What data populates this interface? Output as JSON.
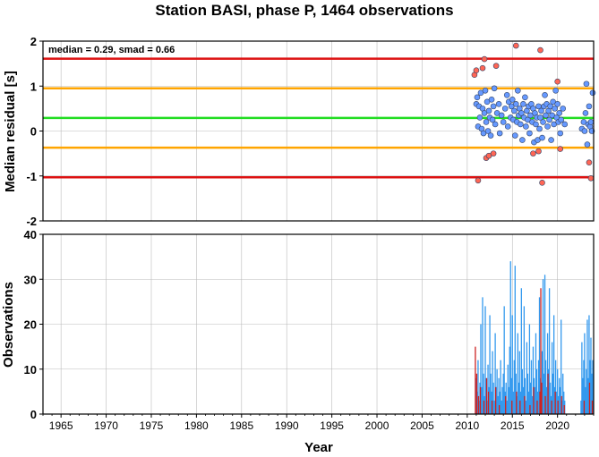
{
  "chart_data": [
    {
      "type": "scatter",
      "title": "Station BASI, phase P, 1464 observations",
      "ylabel": "Median residual [s]",
      "annotation": "median = 0.29, smad = 0.66",
      "xlim": [
        1963,
        2024
      ],
      "ylim": [
        -2,
        2
      ],
      "yticks": [
        -2,
        -1,
        0,
        1,
        2
      ],
      "grid": true,
      "reference_lines": [
        {
          "name": "median",
          "value": 0.29,
          "color": "#22dd22"
        },
        {
          "name": "median+1smad",
          "value": 0.95,
          "color": "#ffa500"
        },
        {
          "name": "median-1smad",
          "value": -0.37,
          "color": "#ffa500"
        },
        {
          "name": "median+2smad",
          "value": 1.61,
          "color": "#dd1111"
        },
        {
          "name": "median-2smad",
          "value": -1.03,
          "color": "#dd1111"
        }
      ],
      "series": [
        {
          "color": "#6699ff",
          "points": [
            [
              2011.0,
              0.6
            ],
            [
              2011.1,
              0.75
            ],
            [
              2011.2,
              0.1
            ],
            [
              2011.3,
              0.55
            ],
            [
              2011.4,
              0.3
            ],
            [
              2011.5,
              0.85
            ],
            [
              2011.6,
              0.05
            ],
            [
              2011.7,
              0.5
            ],
            [
              2011.8,
              -0.05
            ],
            [
              2011.9,
              0.4
            ],
            [
              2012.0,
              0.9
            ],
            [
              2012.1,
              0.2
            ],
            [
              2012.2,
              0.65
            ],
            [
              2012.3,
              0.0
            ],
            [
              2012.4,
              0.45
            ],
            [
              2012.5,
              0.3
            ],
            [
              2012.6,
              -0.1
            ],
            [
              2012.7,
              0.7
            ],
            [
              2012.8,
              0.25
            ],
            [
              2012.9,
              0.55
            ],
            [
              2013.0,
              0.95
            ],
            [
              2013.1,
              0.15
            ],
            [
              2013.3,
              0.4
            ],
            [
              2013.5,
              0.6
            ],
            [
              2013.6,
              -0.05
            ],
            [
              2013.8,
              0.35
            ],
            [
              2014.0,
              0.2
            ],
            [
              2014.2,
              0.5
            ],
            [
              2014.4,
              0.8
            ],
            [
              2014.5,
              0.1
            ],
            [
              2014.6,
              0.65
            ],
            [
              2014.8,
              0.3
            ],
            [
              2014.9,
              0.55
            ],
            [
              2015.0,
              0.7
            ],
            [
              2015.1,
              0.25
            ],
            [
              2015.2,
              0.45
            ],
            [
              2015.3,
              -0.1
            ],
            [
              2015.4,
              0.6
            ],
            [
              2015.5,
              0.2
            ],
            [
              2015.6,
              0.9
            ],
            [
              2015.7,
              0.35
            ],
            [
              2015.8,
              0.5
            ],
            [
              2015.9,
              0.15
            ],
            [
              2016.0,
              0.4
            ],
            [
              2016.1,
              -0.2
            ],
            [
              2016.2,
              0.6
            ],
            [
              2016.3,
              0.3
            ],
            [
              2016.4,
              0.75
            ],
            [
              2016.5,
              0.1
            ],
            [
              2016.6,
              0.45
            ],
            [
              2016.7,
              0.25
            ],
            [
              2016.8,
              0.55
            ],
            [
              2016.9,
              -0.05
            ],
            [
              2017.0,
              0.35
            ],
            [
              2017.1,
              0.6
            ],
            [
              2017.2,
              0.2
            ],
            [
              2017.3,
              0.5
            ],
            [
              2017.4,
              -0.25
            ],
            [
              2017.5,
              0.4
            ],
            [
              2017.6,
              0.15
            ],
            [
              2017.7,
              0.3
            ],
            [
              2017.8,
              -0.2
            ],
            [
              2017.9,
              0.55
            ],
            [
              2018.0,
              0.05
            ],
            [
              2018.1,
              0.3
            ],
            [
              2018.2,
              0.45
            ],
            [
              2018.3,
              -0.15
            ],
            [
              2018.4,
              0.2
            ],
            [
              2018.5,
              0.55
            ],
            [
              2018.6,
              0.8
            ],
            [
              2018.7,
              0.35
            ],
            [
              2018.8,
              0.6
            ],
            [
              2018.9,
              0.1
            ],
            [
              2019.0,
              0.45
            ],
            [
              2019.1,
              0.25
            ],
            [
              2019.2,
              0.55
            ],
            [
              2019.3,
              -0.2
            ],
            [
              2019.4,
              0.35
            ],
            [
              2019.5,
              0.65
            ],
            [
              2019.6,
              0.15
            ],
            [
              2019.7,
              0.5
            ],
            [
              2019.8,
              0.9
            ],
            [
              2019.9,
              0.3
            ],
            [
              2020.0,
              0.6
            ],
            [
              2020.1,
              0.2
            ],
            [
              2020.2,
              0.4
            ],
            [
              2020.3,
              -0.05
            ],
            [
              2020.4,
              0.25
            ],
            [
              2020.6,
              0.5
            ],
            [
              2020.8,
              0.15
            ],
            [
              2022.7,
              0.05
            ],
            [
              2022.9,
              0.2
            ],
            [
              2023.0,
              0.0
            ],
            [
              2023.1,
              0.4
            ],
            [
              2023.2,
              1.05
            ],
            [
              2023.3,
              -0.3
            ],
            [
              2023.4,
              0.15
            ],
            [
              2023.5,
              0.55
            ],
            [
              2023.6,
              0.1
            ],
            [
              2023.7,
              0.2
            ],
            [
              2023.8,
              0.0
            ],
            [
              2023.9,
              0.85
            ]
          ]
        },
        {
          "color": "#ff6655",
          "points": [
            [
              2010.8,
              1.25
            ],
            [
              2011.0,
              1.35
            ],
            [
              2011.2,
              -1.1
            ],
            [
              2011.7,
              1.4
            ],
            [
              2011.9,
              1.6
            ],
            [
              2012.1,
              -0.6
            ],
            [
              2012.4,
              -0.55
            ],
            [
              2012.9,
              -0.5
            ],
            [
              2013.2,
              1.45
            ],
            [
              2015.4,
              1.9
            ],
            [
              2017.3,
              -0.5
            ],
            [
              2017.9,
              -0.45
            ],
            [
              2018.1,
              1.8
            ],
            [
              2018.3,
              -1.15
            ],
            [
              2020.0,
              1.1
            ],
            [
              2020.3,
              -0.4
            ],
            [
              2023.5,
              -0.7
            ],
            [
              2023.7,
              -1.05
            ]
          ]
        }
      ]
    },
    {
      "type": "bar",
      "xlabel": "Year",
      "ylabel": "Observations",
      "xlim": [
        1963,
        2024
      ],
      "ylim": [
        0,
        40
      ],
      "yticks": [
        0,
        10,
        20,
        30,
        40
      ],
      "xticks": [
        1965,
        1970,
        1975,
        1980,
        1985,
        1990,
        1995,
        2000,
        2005,
        2010,
        2015,
        2020
      ],
      "grid": true,
      "series": [
        {
          "color": "#3399ee",
          "bars": [
            [
              2011.0,
              8
            ],
            [
              2011.1,
              5
            ],
            [
              2011.2,
              12
            ],
            [
              2011.3,
              3
            ],
            [
              2011.4,
              7
            ],
            [
              2011.5,
              20
            ],
            [
              2011.6,
              6
            ],
            [
              2011.7,
              26
            ],
            [
              2011.8,
              9
            ],
            [
              2011.9,
              4
            ],
            [
              2012.0,
              24
            ],
            [
              2012.1,
              8
            ],
            [
              2012.2,
              3
            ],
            [
              2012.3,
              11
            ],
            [
              2012.4,
              6
            ],
            [
              2012.5,
              22
            ],
            [
              2012.6,
              9
            ],
            [
              2012.7,
              5
            ],
            [
              2012.8,
              14
            ],
            [
              2012.9,
              7
            ],
            [
              2013.0,
              3
            ],
            [
              2013.1,
              18
            ],
            [
              2013.2,
              6
            ],
            [
              2013.3,
              10
            ],
            [
              2013.4,
              4
            ],
            [
              2013.5,
              8
            ],
            [
              2013.6,
              5
            ],
            [
              2013.7,
              12
            ],
            [
              2013.8,
              3
            ],
            [
              2013.9,
              6
            ],
            [
              2014.0,
              9
            ],
            [
              2014.1,
              24
            ],
            [
              2014.2,
              5
            ],
            [
              2014.3,
              7
            ],
            [
              2014.4,
              3
            ],
            [
              2014.5,
              11
            ],
            [
              2014.6,
              6
            ],
            [
              2014.7,
              15
            ],
            [
              2014.8,
              34
            ],
            [
              2014.9,
              8
            ],
            [
              2015.0,
              22
            ],
            [
              2015.1,
              5
            ],
            [
              2015.2,
              12
            ],
            [
              2015.3,
              33
            ],
            [
              2015.4,
              9
            ],
            [
              2015.5,
              4
            ],
            [
              2015.6,
              18
            ],
            [
              2015.7,
              7
            ],
            [
              2015.8,
              14
            ],
            [
              2015.9,
              5
            ],
            [
              2016.0,
              28
            ],
            [
              2016.1,
              10
            ],
            [
              2016.2,
              6
            ],
            [
              2016.3,
              24
            ],
            [
              2016.4,
              8
            ],
            [
              2016.5,
              3
            ],
            [
              2016.6,
              16
            ],
            [
              2016.7,
              9
            ],
            [
              2016.8,
              5
            ],
            [
              2016.9,
              20
            ],
            [
              2017.0,
              7
            ],
            [
              2017.1,
              12
            ],
            [
              2017.2,
              4
            ],
            [
              2017.3,
              15
            ],
            [
              2017.4,
              8
            ],
            [
              2017.5,
              6
            ],
            [
              2017.6,
              18
            ],
            [
              2017.7,
              10
            ],
            [
              2017.8,
              5
            ],
            [
              2017.9,
              12
            ],
            [
              2018.0,
              26
            ],
            [
              2018.1,
              8
            ],
            [
              2018.2,
              4
            ],
            [
              2018.3,
              14
            ],
            [
              2018.4,
              30
            ],
            [
              2018.5,
              9
            ],
            [
              2018.6,
              31
            ],
            [
              2018.7,
              12
            ],
            [
              2018.8,
              6
            ],
            [
              2018.9,
              18
            ],
            [
              2019.0,
              10
            ],
            [
              2019.1,
              28
            ],
            [
              2019.2,
              7
            ],
            [
              2019.3,
              4
            ],
            [
              2019.4,
              16
            ],
            [
              2019.5,
              9
            ],
            [
              2019.6,
              22
            ],
            [
              2019.7,
              6
            ],
            [
              2019.8,
              12
            ],
            [
              2019.9,
              5
            ],
            [
              2020.0,
              10
            ],
            [
              2020.1,
              4
            ],
            [
              2020.2,
              8
            ],
            [
              2020.3,
              6
            ],
            [
              2020.4,
              21
            ],
            [
              2020.5,
              3
            ],
            [
              2020.6,
              9
            ],
            [
              2020.7,
              5
            ],
            [
              2020.8,
              3
            ],
            [
              2022.6,
              3
            ],
            [
              2022.7,
              16
            ],
            [
              2022.8,
              8
            ],
            [
              2022.9,
              12
            ],
            [
              2023.0,
              18
            ],
            [
              2023.1,
              6
            ],
            [
              2023.2,
              10
            ],
            [
              2023.3,
              21
            ],
            [
              2023.4,
              8
            ],
            [
              2023.5,
              22
            ],
            [
              2023.6,
              12
            ],
            [
              2023.7,
              17
            ],
            [
              2023.8,
              9
            ],
            [
              2023.9,
              12
            ]
          ]
        },
        {
          "color": "#cc2222",
          "bars": [
            [
              2010.9,
              15
            ],
            [
              2011.05,
              9
            ],
            [
              2011.25,
              4
            ],
            [
              2011.45,
              6
            ],
            [
              2011.85,
              3
            ],
            [
              2012.15,
              8
            ],
            [
              2012.35,
              5
            ],
            [
              2012.75,
              3
            ],
            [
              2013.15,
              6
            ],
            [
              2013.55,
              2
            ],
            [
              2014.25,
              4
            ],
            [
              2014.95,
              3
            ],
            [
              2015.45,
              5
            ],
            [
              2015.85,
              3
            ],
            [
              2016.35,
              4
            ],
            [
              2016.95,
              2
            ],
            [
              2017.35,
              6
            ],
            [
              2017.75,
              3
            ],
            [
              2018.05,
              5
            ],
            [
              2018.15,
              28
            ],
            [
              2018.25,
              7
            ],
            [
              2018.65,
              4
            ],
            [
              2018.95,
              9
            ],
            [
              2019.35,
              3
            ],
            [
              2019.75,
              5
            ],
            [
              2020.05,
              3
            ],
            [
              2020.45,
              4
            ],
            [
              2020.75,
              2
            ],
            [
              2022.95,
              3
            ],
            [
              2023.55,
              7
            ],
            [
              2023.85,
              3
            ]
          ]
        }
      ]
    }
  ]
}
